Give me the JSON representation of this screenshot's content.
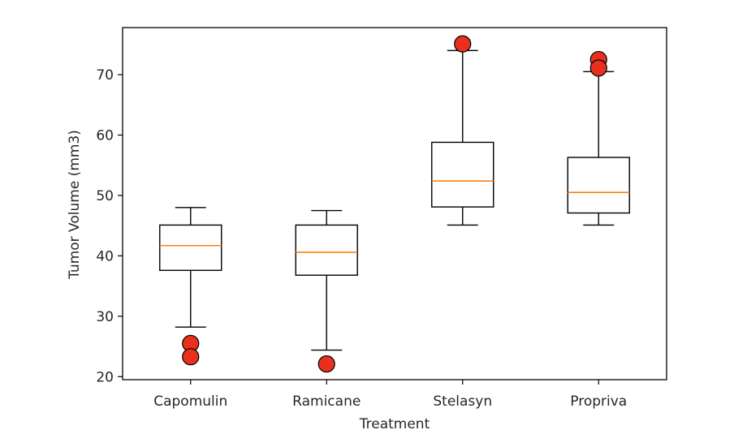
{
  "chart_data": {
    "type": "box",
    "title": "",
    "xlabel": "Treatment",
    "ylabel": "Tumor Volume (mm3)",
    "ylim": [
      19.5,
      77.8
    ],
    "yticks": [
      20,
      30,
      40,
      50,
      60,
      70
    ],
    "grid": false,
    "categories": [
      "Capomulin",
      "Ramicane",
      "Stelasyn",
      "Propriva"
    ],
    "boxes": [
      {
        "category": "Capomulin",
        "whisker_low": 28.2,
        "q1": 37.6,
        "median": 41.7,
        "q3": 45.1,
        "whisker_high": 48.0,
        "outliers": [
          25.5,
          23.3
        ]
      },
      {
        "category": "Ramicane",
        "whisker_low": 24.4,
        "q1": 36.8,
        "median": 40.6,
        "q3": 45.1,
        "whisker_high": 47.5,
        "outliers": [
          22.1
        ]
      },
      {
        "category": "Stelasyn",
        "whisker_low": 45.1,
        "q1": 48.1,
        "median": 52.4,
        "q3": 58.8,
        "whisker_high": 74.0,
        "outliers": [
          75.1
        ]
      },
      {
        "category": "Propriva",
        "whisker_low": 45.1,
        "q1": 47.1,
        "median": 50.5,
        "q3": 56.3,
        "whisker_high": 70.5,
        "outliers": [
          72.5,
          71.1
        ]
      }
    ],
    "colors": {
      "median": "#ff7f0e",
      "outlier_fill": "#e8301c",
      "box": "#000000"
    }
  }
}
